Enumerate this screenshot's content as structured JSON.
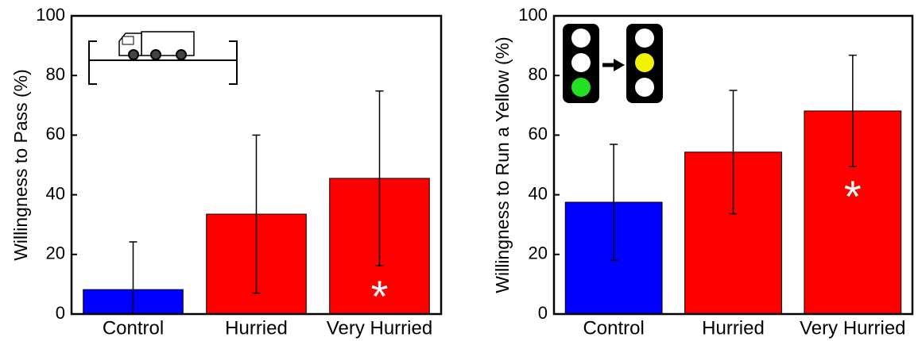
{
  "chart_data": [
    {
      "type": "bar",
      "ylabel": "Willingness to Pass (%)",
      "categories": [
        "Control",
        "Hurried",
        "Very Hurried"
      ],
      "values": [
        8.2,
        33.5,
        45.5
      ],
      "errors": [
        16,
        26.5,
        29.3
      ],
      "colors": [
        "#0000ff",
        "#ff0000",
        "#ff0000"
      ],
      "annotations": [
        null,
        null,
        "*"
      ],
      "ylim": [
        0,
        100
      ],
      "yticks": [
        0,
        20,
        40,
        60,
        80,
        100
      ]
    },
    {
      "type": "bar",
      "ylabel": "Willingness to Run a Yellow (%)",
      "categories": [
        "Control",
        "Hurried",
        "Very Hurried"
      ],
      "values": [
        37.5,
        54.3,
        68.1
      ],
      "errors": [
        19.4,
        20.7,
        18.7
      ],
      "colors": [
        "#0000ff",
        "#ff0000",
        "#ff0000"
      ],
      "annotations": [
        null,
        null,
        "*"
      ],
      "ylim": [
        0,
        100
      ],
      "yticks": [
        0,
        20,
        40,
        60,
        80,
        100
      ]
    }
  ]
}
